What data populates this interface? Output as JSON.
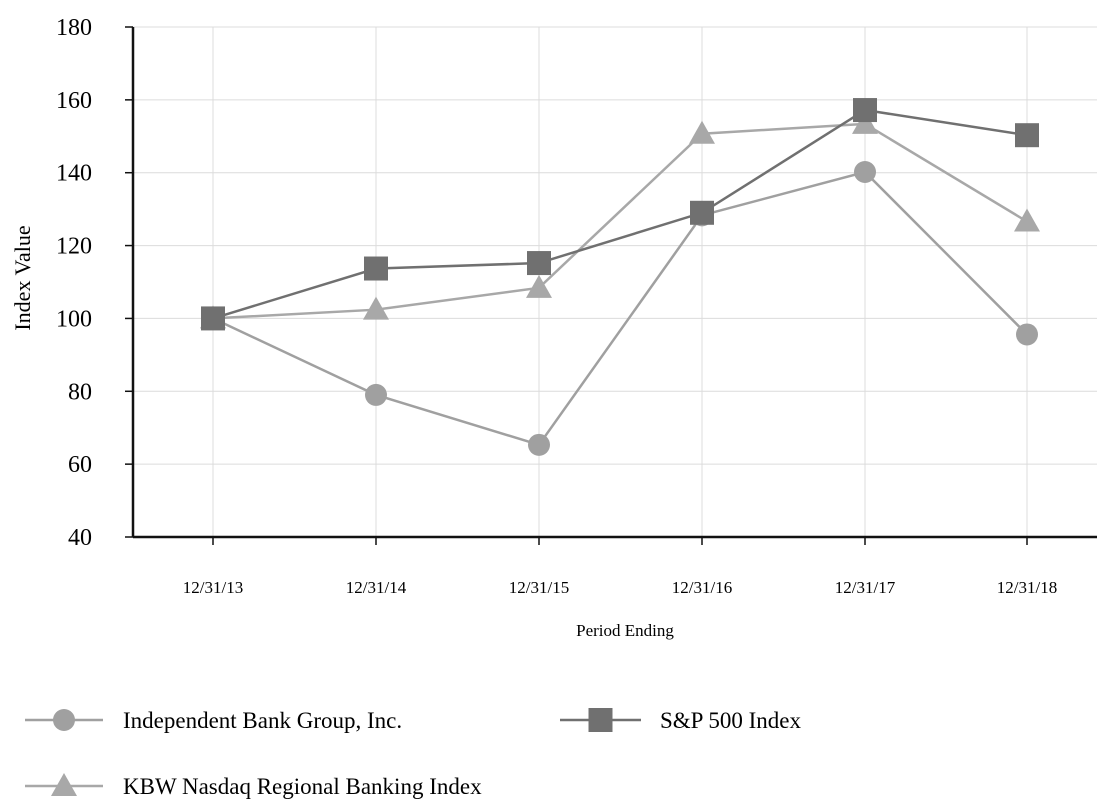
{
  "chart_data": {
    "type": "line",
    "title": "",
    "xlabel": "Period Ending",
    "ylabel": "Index Value",
    "categories": [
      "12/31/13",
      "12/31/14",
      "12/31/15",
      "12/31/16",
      "12/31/17",
      "12/31/18"
    ],
    "ylim": [
      40,
      180
    ],
    "yticks": [
      40,
      60,
      80,
      100,
      120,
      140,
      160,
      180
    ],
    "grid": true,
    "legend_position": "bottom",
    "series": [
      {
        "name": "Independent Bank Group, Inc.",
        "marker": "circle",
        "color": "#a0a0a0",
        "values": [
          100,
          79,
          65.3,
          128.3,
          140.2,
          95.6
        ]
      },
      {
        "name": "S&P 500 Index",
        "marker": "square",
        "color": "#707070",
        "values": [
          100,
          113.7,
          115.2,
          129,
          157.2,
          150.3
        ]
      },
      {
        "name": "KBW Nasdaq Regional Banking Index",
        "marker": "triangle",
        "color": "#a8a8a8",
        "values": [
          100,
          102.4,
          108.4,
          150.7,
          153.4,
          126.6
        ]
      }
    ]
  }
}
